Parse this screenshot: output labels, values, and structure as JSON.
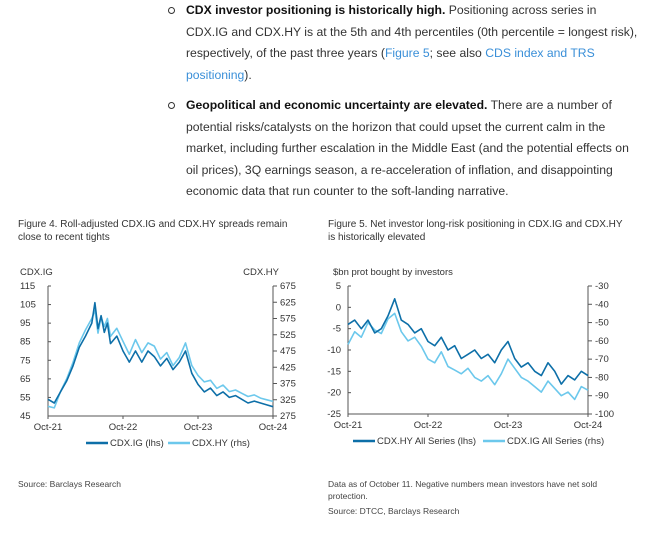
{
  "bullets": [
    {
      "bold": "CDX investor positioning is historically high.",
      "text": " Positioning across series in CDX.IG and CDX.HY is at the 5th and 4th percentiles (0th percentile = longest risk), respectively, of the past three years (",
      "link1": "Figure 5",
      "text2": "; see also ",
      "link2": "CDS index and TRS positioning",
      "text3": ")."
    },
    {
      "bold": "Geopolitical and economic uncertainty are elevated.",
      "text": " There are a number of potential risks/catalysts on the horizon that could upset the current calm in the market, including further escalation in the Middle East (and the potential effects on oil prices), 3Q earnings season, a re-acceleration of inflation, and disappointing economic data that run counter to the soft-landing narrative."
    }
  ],
  "figure4": {
    "title": "Figure 4. Roll-adjusted CDX.IG and CDX.HY spreads remain close to recent tights",
    "source": "Source: Barclays Research",
    "colors": {
      "ig": "#0d6fa8",
      "hy": "#6cc8ec"
    },
    "chart_data": {
      "type": "line",
      "left_axis_label": "CDX.IG",
      "right_axis_label": "CDX.HY",
      "left_ticks": [
        115,
        105,
        95,
        85,
        75,
        65,
        55,
        45
      ],
      "right_ticks": [
        675,
        625,
        575,
        525,
        475,
        425,
        375,
        325,
        275
      ],
      "ylim_left": [
        45,
        115
      ],
      "ylim_right": [
        275,
        675
      ],
      "x_ticks": [
        "Oct-21",
        "Oct-22",
        "Oct-23",
        "Oct-24"
      ],
      "x_tick_times": [
        0,
        12,
        24,
        36
      ],
      "series": [
        {
          "name": "CDX.IG (lhs)",
          "axis": "left",
          "x": [
            0,
            1,
            2,
            3,
            4,
            5,
            6,
            7,
            7.5,
            8,
            8.5,
            9,
            9.5,
            10,
            11,
            12,
            13,
            14,
            15,
            16,
            17,
            18,
            19,
            20,
            21,
            22,
            23,
            24,
            25,
            26,
            27,
            28,
            29,
            30,
            31,
            32,
            33,
            34,
            35,
            36
          ],
          "y": [
            54,
            52,
            58,
            64,
            72,
            82,
            88,
            95,
            106,
            92,
            99,
            90,
            95,
            84,
            88,
            80,
            74,
            80,
            74,
            80,
            77,
            72,
            76,
            70,
            74,
            80,
            68,
            62,
            58,
            60,
            56,
            58,
            55,
            56,
            54,
            52,
            53,
            52,
            51,
            50
          ]
        },
        {
          "name": "CDX.HY (rhs)",
          "axis": "right",
          "x": [
            0,
            1,
            2,
            3,
            4,
            5,
            6,
            7,
            7.5,
            8,
            8.5,
            9,
            9.5,
            10,
            11,
            12,
            13,
            14,
            15,
            16,
            17,
            18,
            19,
            20,
            21,
            22,
            23,
            24,
            25,
            26,
            27,
            28,
            29,
            30,
            31,
            32,
            33,
            34,
            35,
            36
          ],
          "y": [
            305,
            300,
            350,
            390,
            440,
            500,
            540,
            575,
            600,
            530,
            580,
            550,
            575,
            520,
            545,
            505,
            465,
            510,
            470,
            500,
            490,
            450,
            470,
            430,
            455,
            500,
            430,
            400,
            380,
            385,
            360,
            370,
            350,
            355,
            345,
            335,
            340,
            330,
            325,
            320
          ]
        }
      ]
    }
  },
  "figure5": {
    "title": "Figure 5. Net investor long-risk positioning in CDX.IG and CDX.HY is historically elevated",
    "note": "Data as of October 11. Negative numbers mean investors have net sold protection.",
    "source": "Source: DTCC, Barclays Research",
    "colors": {
      "hy": "#0d6fa8",
      "ig": "#6cc8ec"
    },
    "chart_data": {
      "type": "line",
      "left_axis_label": "$bn prot bought by investors",
      "left_ticks": [
        5,
        0,
        -5,
        -10,
        -15,
        -20,
        -25
      ],
      "right_ticks": [
        -30,
        -40,
        -50,
        -60,
        -70,
        -80,
        -90,
        -100
      ],
      "ylim_left": [
        -25,
        5
      ],
      "ylim_right": [
        -100,
        -30
      ],
      "x_ticks": [
        "Oct-21",
        "Oct-22",
        "Oct-23",
        "Oct-24"
      ],
      "x_tick_times": [
        0,
        12,
        24,
        36
      ],
      "series": [
        {
          "name": "CDX.HY All Series (lhs)",
          "axis": "left",
          "x": [
            0,
            1,
            2,
            3,
            4,
            5,
            6,
            7,
            8,
            9,
            10,
            11,
            12,
            13,
            14,
            15,
            16,
            17,
            18,
            19,
            20,
            21,
            22,
            23,
            24,
            25,
            26,
            27,
            28,
            29,
            30,
            31,
            32,
            33,
            34,
            35,
            36
          ],
          "y": [
            -4,
            -3,
            -5,
            -3,
            -6,
            -5,
            -2,
            2,
            -3,
            -4,
            -6,
            -5,
            -8,
            -9,
            -7,
            -10,
            -9,
            -12,
            -11,
            -10,
            -12,
            -11,
            -13,
            -10,
            -8,
            -12,
            -14,
            -13,
            -15,
            -16,
            -13,
            -15,
            -18,
            -16,
            -17,
            -15,
            -16
          ]
        },
        {
          "name": "CDX.IG All Series (rhs)",
          "axis": "right",
          "x": [
            0,
            1,
            2,
            3,
            4,
            5,
            6,
            7,
            8,
            9,
            10,
            11,
            12,
            13,
            14,
            15,
            16,
            17,
            18,
            19,
            20,
            21,
            22,
            23,
            24,
            25,
            26,
            27,
            28,
            29,
            30,
            31,
            32,
            33,
            34,
            35,
            36
          ],
          "y": [
            -62,
            -55,
            -58,
            -50,
            -54,
            -56,
            -48,
            -45,
            -55,
            -60,
            -58,
            -63,
            -70,
            -72,
            -66,
            -74,
            -76,
            -78,
            -75,
            -80,
            -82,
            -79,
            -84,
            -78,
            -70,
            -75,
            -80,
            -82,
            -85,
            -88,
            -82,
            -86,
            -90,
            -88,
            -92,
            -85,
            -87
          ]
        }
      ]
    }
  }
}
